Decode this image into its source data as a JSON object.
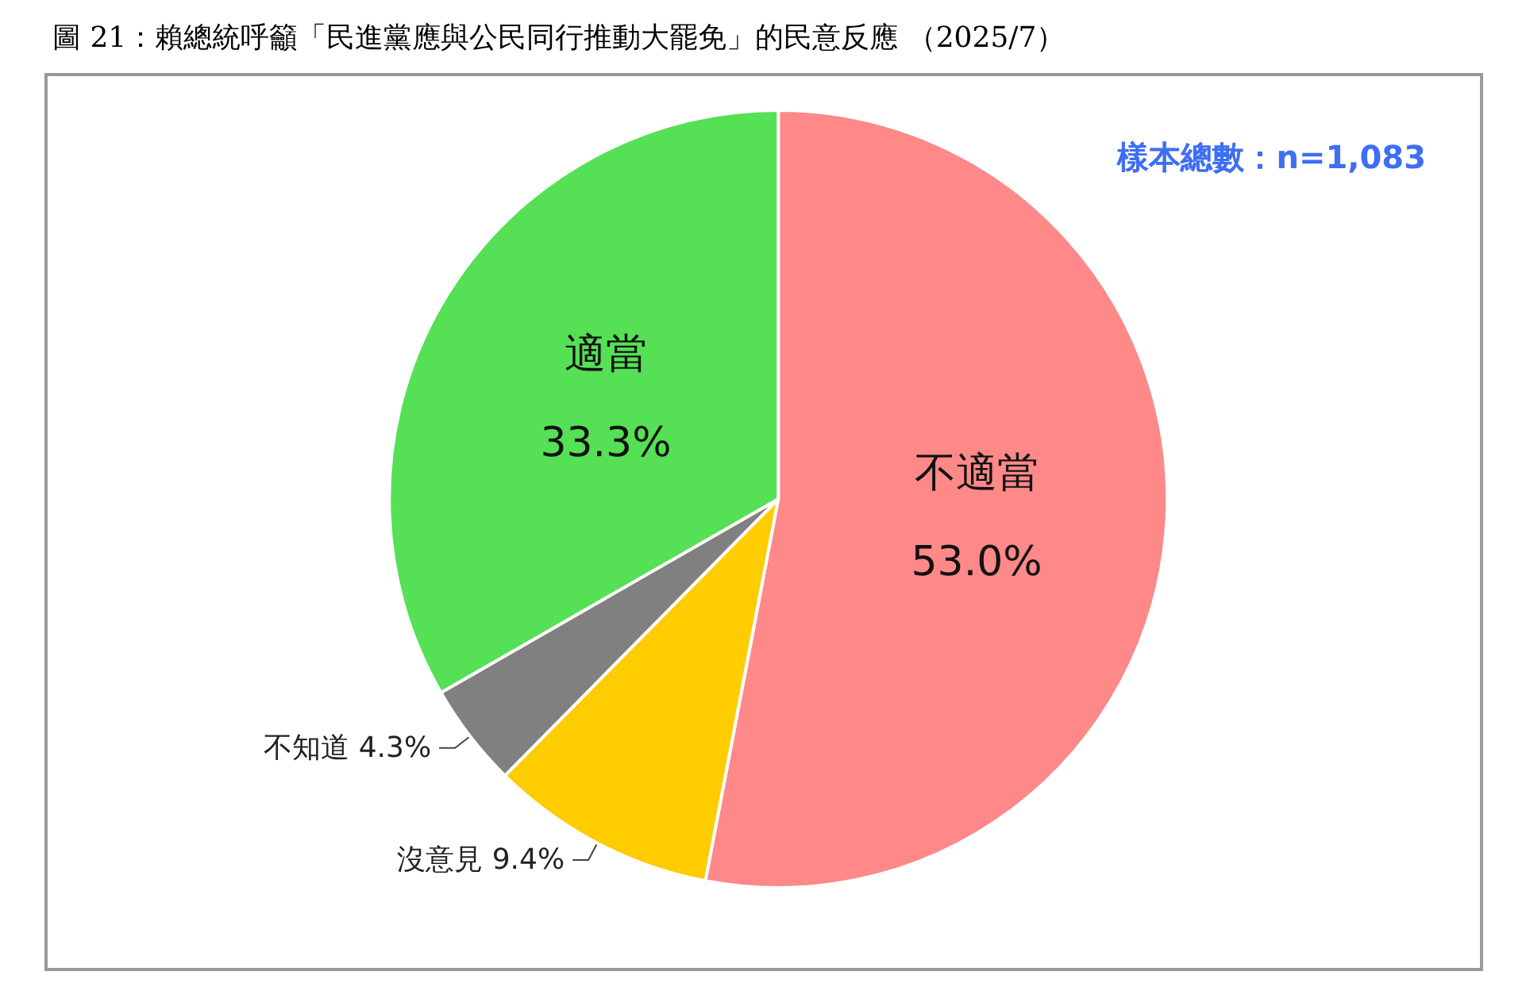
{
  "chart_data": {
    "type": "pie",
    "title": "圖 21：賴總統呼籲「民進黨應與公民同行推動大罷免」的民意反應 （2025/7）",
    "categories": [
      "不適當",
      "沒意見",
      "不知道",
      "適當"
    ],
    "values": [
      53.0,
      9.4,
      4.3,
      33.3
    ],
    "value_labels": [
      "53.0%",
      "9.4%",
      "4.3%",
      "33.3%"
    ],
    "colors": [
      "#ff8888",
      "#ffcc00",
      "#808080",
      "#55e055"
    ],
    "annotations": [
      "樣本總數：n=1,083"
    ],
    "legend": false
  }
}
